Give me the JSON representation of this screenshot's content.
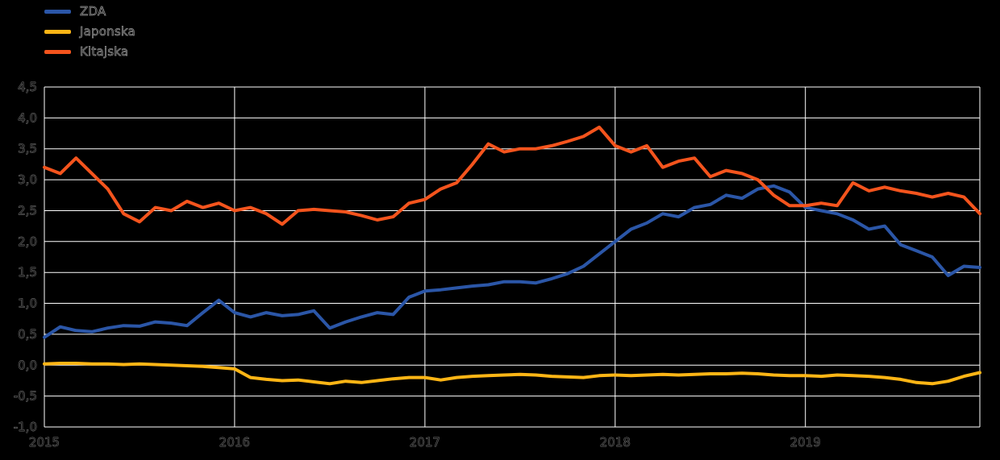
{
  "chart_data": {
    "type": "line",
    "title": "",
    "xlabel": "",
    "ylabel": "",
    "grid": true,
    "legend_position": "top-left",
    "background_color": "#000000",
    "gridline_color": "#ffffff",
    "ylim": [
      -1.0,
      4.5
    ],
    "ytick_step": 0.5,
    "ytick_labels": [
      "4,5",
      "4,0",
      "3,5",
      "3,0",
      "2,5",
      "2,0",
      "1,5",
      "1,0",
      "0,5",
      "0,0",
      "-0,5",
      "-1,0"
    ],
    "x_years": [
      "2015",
      "2016",
      "2017",
      "2018",
      "2019"
    ],
    "x_frequency": "monthly",
    "series": [
      {
        "name": "ZDA",
        "color": "#2b56a7",
        "values": [
          0.45,
          0.62,
          0.56,
          0.54,
          0.6,
          0.64,
          0.63,
          0.7,
          0.68,
          0.64,
          0.85,
          1.05,
          0.85,
          0.78,
          0.85,
          0.8,
          0.82,
          0.88,
          0.6,
          0.7,
          0.78,
          0.85,
          0.82,
          1.1,
          1.2,
          1.22,
          1.25,
          1.28,
          1.3,
          1.35,
          1.35,
          1.33,
          1.4,
          1.48,
          1.6,
          1.8,
          2.0,
          2.2,
          2.3,
          2.45,
          2.4,
          2.55,
          2.6,
          2.75,
          2.7,
          2.85,
          2.9,
          2.8,
          2.55,
          2.5,
          2.45,
          2.35,
          2.2,
          2.25,
          1.95,
          1.85,
          1.75,
          1.45,
          1.6,
          1.58
        ]
      },
      {
        "name": "Japonska",
        "color": "#fdb515",
        "values": [
          0.02,
          0.03,
          0.03,
          0.02,
          0.02,
          0.01,
          0.02,
          0.01,
          0.0,
          -0.01,
          -0.02,
          -0.04,
          -0.06,
          -0.2,
          -0.23,
          -0.25,
          -0.24,
          -0.27,
          -0.3,
          -0.26,
          -0.28,
          -0.25,
          -0.22,
          -0.2,
          -0.2,
          -0.24,
          -0.2,
          -0.18,
          -0.17,
          -0.16,
          -0.15,
          -0.16,
          -0.18,
          -0.19,
          -0.2,
          -0.17,
          -0.16,
          -0.17,
          -0.16,
          -0.15,
          -0.16,
          -0.15,
          -0.14,
          -0.14,
          -0.13,
          -0.14,
          -0.16,
          -0.17,
          -0.17,
          -0.18,
          -0.16,
          -0.17,
          -0.18,
          -0.2,
          -0.23,
          -0.28,
          -0.3,
          -0.26,
          -0.18,
          -0.12
        ]
      },
      {
        "name": "Kitajska",
        "color": "#f4541d",
        "values": [
          3.2,
          3.1,
          3.35,
          3.1,
          2.85,
          2.45,
          2.32,
          2.55,
          2.5,
          2.65,
          2.55,
          2.62,
          2.5,
          2.55,
          2.45,
          2.28,
          2.5,
          2.52,
          2.5,
          2.48,
          2.42,
          2.35,
          2.4,
          2.62,
          2.68,
          2.85,
          2.95,
          3.25,
          3.58,
          3.45,
          3.5,
          3.5,
          3.55,
          3.62,
          3.7,
          3.85,
          3.55,
          3.45,
          3.55,
          3.2,
          3.3,
          3.35,
          3.05,
          3.15,
          3.1,
          3.0,
          2.75,
          2.58,
          2.58,
          2.62,
          2.58,
          2.95,
          2.82,
          2.88,
          2.82,
          2.78,
          2.72,
          2.78,
          2.72,
          2.45
        ]
      }
    ]
  }
}
